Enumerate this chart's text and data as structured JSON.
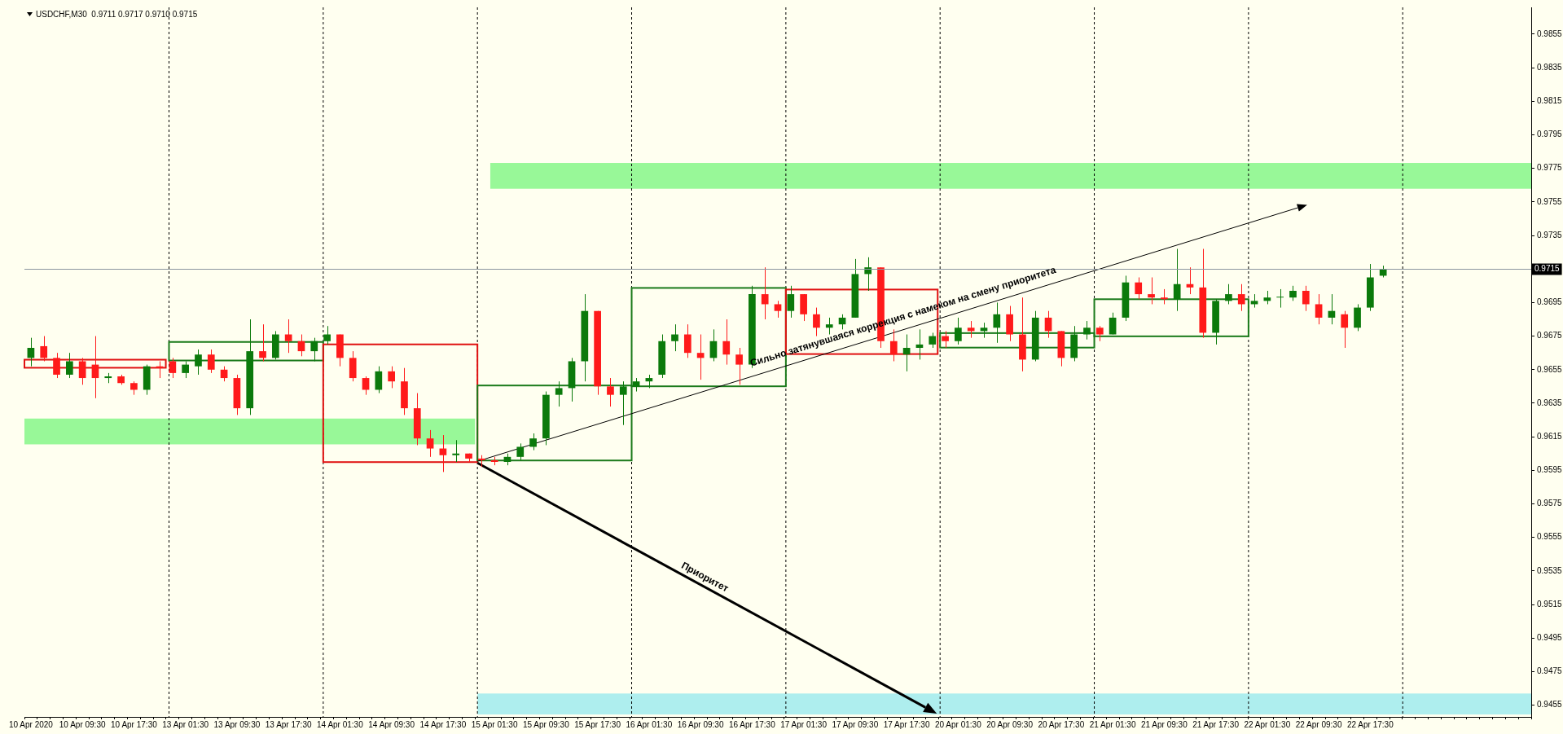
{
  "chart_data": {
    "type": "candlestick",
    "title": "USDCHF,M30  0.9711 0.9717 0.9710 0.9715",
    "categories": [
      "10 Apr 2020",
      null,
      null,
      null,
      "10 Apr 09:30",
      null,
      null,
      null,
      "10 Apr 17:30",
      null,
      null,
      null,
      "13 Apr 01:30",
      null,
      null,
      null,
      "13 Apr 09:30",
      null,
      null,
      null,
      "13 Apr 17:30",
      null,
      null,
      null,
      "14 Apr 01:30",
      null,
      null,
      null,
      "14 Apr 09:30",
      null,
      null,
      null,
      "14 Apr 17:30",
      null,
      null,
      null,
      "15 Apr 01:30",
      null,
      null,
      null,
      "15 Apr 09:30",
      null,
      null,
      null,
      "15 Apr 17:30",
      null,
      null,
      null,
      "16 Apr 01:30",
      null,
      null,
      null,
      "16 Apr 09:30",
      null,
      null,
      null,
      "16 Apr 17:30",
      null,
      null,
      null,
      "17 Apr 01:30",
      null,
      null,
      null,
      "17 Apr 09:30",
      null,
      null,
      null,
      "17 Apr 17:30",
      null,
      null,
      null,
      "20 Apr 01:30",
      null,
      null,
      null,
      "20 Apr 09:30",
      null,
      null,
      null,
      "20 Apr 17:30",
      null,
      null,
      null,
      "21 Apr 01:30",
      null,
      null,
      null,
      "21 Apr 09:30",
      null,
      null,
      null,
      "21 Apr 17:30",
      null,
      null,
      null,
      "22 Apr 01:30",
      null,
      null,
      null,
      "22 Apr 09:30",
      null,
      null,
      null,
      "22 Apr 17:30",
      null,
      null,
      null,
      null,
      null,
      null,
      null,
      null,
      null,
      null,
      null,
      null
    ],
    "ohlc": [
      [
        0.9662,
        0.9674,
        0.9657,
        0.9668
      ],
      [
        0.9669,
        0.9675,
        0.966,
        0.9662
      ],
      [
        0.9662,
        0.9665,
        0.965,
        0.9652
      ],
      [
        0.9652,
        0.9665,
        0.965,
        0.966
      ],
      [
        0.966,
        0.9662,
        0.9646,
        0.965
      ],
      [
        0.9658,
        0.9675,
        0.9638,
        0.965
      ],
      [
        0.965,
        0.9653,
        0.9647,
        0.9651
      ],
      [
        0.9651,
        0.9652,
        0.9646,
        0.9647
      ],
      [
        0.9647,
        0.9648,
        0.964,
        0.9643
      ],
      [
        0.9643,
        0.9658,
        0.964,
        0.9657
      ],
      [
        0.9657,
        0.966,
        0.965,
        0.9656
      ],
      [
        0.966,
        0.9662,
        0.965,
        0.9653
      ],
      [
        0.9653,
        0.966,
        0.965,
        0.9658
      ],
      [
        0.9657,
        0.9667,
        0.9652,
        0.9664
      ],
      [
        0.9664,
        0.9667,
        0.9653,
        0.9655
      ],
      [
        0.9655,
        0.9657,
        0.9648,
        0.965
      ],
      [
        0.965,
        0.9652,
        0.9628,
        0.9632
      ],
      [
        0.9632,
        0.9685,
        0.9628,
        0.9666
      ],
      [
        0.9666,
        0.9682,
        0.966,
        0.9662
      ],
      [
        0.9662,
        0.9678,
        0.9661,
        0.9676
      ],
      [
        0.9676,
        0.9685,
        0.9665,
        0.9672
      ],
      [
        0.9672,
        0.9676,
        0.9663,
        0.9666
      ],
      [
        0.9666,
        0.9674,
        0.966,
        0.9672
      ],
      [
        0.9672,
        0.9681,
        0.967,
        0.9676
      ],
      [
        0.9676,
        0.9676,
        0.9657,
        0.9662
      ],
      [
        0.9662,
        0.9666,
        0.9648,
        0.965
      ],
      [
        0.965,
        0.9651,
        0.964,
        0.9643
      ],
      [
        0.9643,
        0.9657,
        0.9641,
        0.9654
      ],
      [
        0.9654,
        0.9657,
        0.9644,
        0.9648
      ],
      [
        0.9648,
        0.9656,
        0.9628,
        0.9632
      ],
      [
        0.9632,
        0.9641,
        0.961,
        0.9614
      ],
      [
        0.9614,
        0.9619,
        0.9603,
        0.9608
      ],
      [
        0.9608,
        0.9616,
        0.9594,
        0.9604
      ],
      [
        0.9604,
        0.9613,
        0.96,
        0.9605
      ],
      [
        0.9605,
        0.9605,
        0.96,
        0.9602
      ],
      [
        0.9602,
        0.9604,
        0.9597,
        0.9601
      ],
      [
        0.9601,
        0.9603,
        0.9598,
        0.96
      ],
      [
        0.96,
        0.9605,
        0.9598,
        0.9603
      ],
      [
        0.9603,
        0.9611,
        0.9601,
        0.9609
      ],
      [
        0.9609,
        0.9617,
        0.9607,
        0.9614
      ],
      [
        0.9614,
        0.9642,
        0.961,
        0.964
      ],
      [
        0.964,
        0.9648,
        0.9633,
        0.9644
      ],
      [
        0.9644,
        0.9662,
        0.9636,
        0.966
      ],
      [
        0.966,
        0.97,
        0.9648,
        0.969
      ],
      [
        0.969,
        0.969,
        0.964,
        0.9645
      ],
      [
        0.9645,
        0.965,
        0.9633,
        0.964
      ],
      [
        0.964,
        0.9648,
        0.9622,
        0.9645
      ],
      [
        0.9645,
        0.965,
        0.9642,
        0.9648
      ],
      [
        0.9648,
        0.9652,
        0.9644,
        0.965
      ],
      [
        0.9652,
        0.9676,
        0.965,
        0.9672
      ],
      [
        0.9672,
        0.9682,
        0.9666,
        0.9676
      ],
      [
        0.9676,
        0.9682,
        0.9662,
        0.9665
      ],
      [
        0.9665,
        0.9676,
        0.9649,
        0.9662
      ],
      [
        0.9662,
        0.9679,
        0.966,
        0.9672
      ],
      [
        0.9672,
        0.9685,
        0.9658,
        0.9664
      ],
      [
        0.9664,
        0.9668,
        0.9646,
        0.9658
      ],
      [
        0.9658,
        0.9705,
        0.9656,
        0.97
      ],
      [
        0.97,
        0.9716,
        0.9685,
        0.9694
      ],
      [
        0.9694,
        0.9696,
        0.9686,
        0.969
      ],
      [
        0.969,
        0.9705,
        0.9686,
        0.97
      ],
      [
        0.97,
        0.97,
        0.9684,
        0.9688
      ],
      [
        0.9688,
        0.9692,
        0.9675,
        0.968
      ],
      [
        0.968,
        0.9686,
        0.9676,
        0.9682
      ],
      [
        0.9682,
        0.9688,
        0.9679,
        0.9686
      ],
      [
        0.9686,
        0.9721,
        0.9686,
        0.9712
      ],
      [
        0.9712,
        0.9722,
        0.9702,
        0.9716
      ],
      [
        0.9716,
        0.9716,
        0.9668,
        0.9672
      ],
      [
        0.9672,
        0.9679,
        0.966,
        0.9664
      ],
      [
        0.9664,
        0.9676,
        0.9654,
        0.9668
      ],
      [
        0.9668,
        0.9679,
        0.9661,
        0.967
      ],
      [
        0.967,
        0.9677,
        0.9668,
        0.9675
      ],
      [
        0.9675,
        0.9678,
        0.9668,
        0.9672
      ],
      [
        0.9672,
        0.9686,
        0.967,
        0.968
      ],
      [
        0.968,
        0.9684,
        0.9674,
        0.9678
      ],
      [
        0.9678,
        0.9683,
        0.9674,
        0.968
      ],
      [
        0.968,
        0.9695,
        0.9671,
        0.9688
      ],
      [
        0.9688,
        0.9693,
        0.9672,
        0.9676
      ],
      [
        0.9676,
        0.9698,
        0.9654,
        0.9661
      ],
      [
        0.9661,
        0.969,
        0.966,
        0.9686
      ],
      [
        0.9686,
        0.969,
        0.9674,
        0.9678
      ],
      [
        0.9678,
        0.9678,
        0.9657,
        0.9662
      ],
      [
        0.9662,
        0.9681,
        0.966,
        0.9676
      ],
      [
        0.9676,
        0.9684,
        0.9673,
        0.968
      ],
      [
        0.968,
        0.9681,
        0.9672,
        0.9676
      ],
      [
        0.9676,
        0.9689,
        0.9676,
        0.9686
      ],
      [
        0.9686,
        0.9711,
        0.9684,
        0.9707
      ],
      [
        0.9707,
        0.971,
        0.9697,
        0.97
      ],
      [
        0.97,
        0.971,
        0.9694,
        0.9698
      ],
      [
        0.9698,
        0.9703,
        0.9694,
        0.9697
      ],
      [
        0.9697,
        0.9727,
        0.969,
        0.9706
      ],
      [
        0.9706,
        0.9716,
        0.97,
        0.9704
      ],
      [
        0.9704,
        0.9727,
        0.9674,
        0.9677
      ],
      [
        0.9677,
        0.9697,
        0.967,
        0.9696
      ],
      [
        0.9696,
        0.9706,
        0.9694,
        0.97
      ],
      [
        0.97,
        0.9706,
        0.969,
        0.9694
      ],
      [
        0.9694,
        0.97,
        0.9692,
        0.9696
      ],
      [
        0.9696,
        0.9702,
        0.9694,
        0.9698
      ],
      [
        0.9698,
        0.9703,
        0.9692,
        0.9698
      ],
      [
        0.9698,
        0.9705,
        0.9696,
        0.9702
      ],
      [
        0.9702,
        0.9705,
        0.969,
        0.9694
      ],
      [
        0.9694,
        0.97,
        0.9682,
        0.9686
      ],
      [
        0.9686,
        0.97,
        0.9682,
        0.969
      ],
      [
        0.9688,
        0.969,
        0.9668,
        0.968
      ],
      [
        0.968,
        0.9694,
        0.9678,
        0.9692
      ],
      [
        0.9692,
        0.9718,
        0.969,
        0.971
      ],
      [
        0.9711,
        0.9717,
        0.971,
        0.9715
      ],
      null,
      null,
      null,
      null,
      null,
      null,
      null,
      null,
      null,
      null,
      null
    ],
    "ylim": [
      0.9448,
      0.9871
    ],
    "yticks": [
      0.9455,
      0.9475,
      0.9495,
      0.9515,
      0.9535,
      0.9555,
      0.9575,
      0.9595,
      0.9615,
      0.9635,
      0.9655,
      0.9675,
      0.9695,
      0.9735,
      0.9755,
      0.9775,
      0.9795,
      0.9815,
      0.9835,
      0.9855
    ],
    "ref_lines": [
      {
        "axis": "y",
        "value": 0.9715,
        "label": "0.9715",
        "color": "#8c96a0"
      }
    ],
    "annotations": [
      "Сильно затянувшаяся коррекция с намеком на смену приоритета",
      "Приоритет"
    ]
  }
}
